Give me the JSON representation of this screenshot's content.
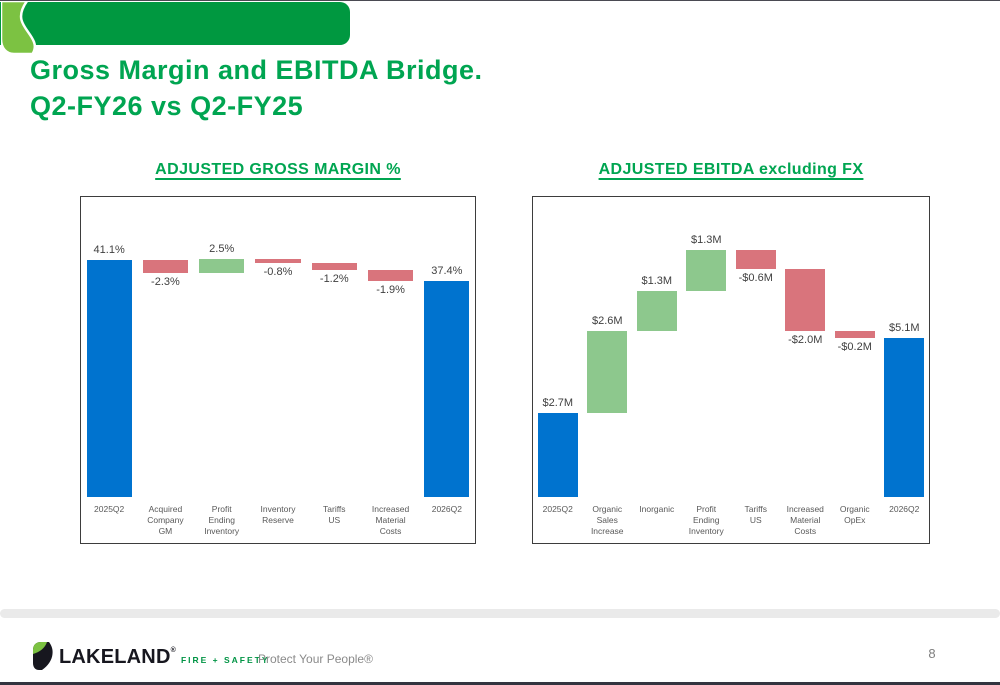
{
  "slide": {
    "title_line1": "Gross Margin and EBITDA Bridge.",
    "title_line2": "Q2-FY26 vs Q2-FY25",
    "page_number": "8"
  },
  "footer": {
    "brand_name": "LAKELAND",
    "brand_reg": "®",
    "brand_sub": "FIRE + SAFETY",
    "tagline": "Protect Your People®"
  },
  "colors": {
    "brand_green": "#00A551",
    "header_bar_green": "#009840",
    "leaf_light_green": "#7CC242",
    "logo_navy": "#17171f",
    "bar_total_blue": "#0073CF",
    "bar_increase_green": "#8DC88D",
    "bar_decrease_red": "#D9747C"
  },
  "chart_data": [
    {
      "type": "bar",
      "subtype": "waterfall",
      "title": "ADJUSTED GROSS MARGIN %",
      "unit": "%",
      "ylim": [
        0,
        52
      ],
      "grid": false,
      "legend": false,
      "steps": [
        {
          "category": "2025Q2",
          "label": "41.1%",
          "value": 41.1,
          "role": "total"
        },
        {
          "category": "Acquired\nCompany\nGM",
          "label": "-2.3%",
          "value": -2.3,
          "role": "decrease"
        },
        {
          "category": "Profit\nEnding\nInventory",
          "label": "2.5%",
          "value": 2.5,
          "role": "increase"
        },
        {
          "category": "Inventory\nReserve",
          "label": "-0.8%",
          "value": -0.8,
          "role": "decrease"
        },
        {
          "category": "Tariffs\nUS",
          "label": "-1.2%",
          "value": -1.2,
          "role": "decrease"
        },
        {
          "category": "Increased\nMaterial\nCosts",
          "label": "-1.9%",
          "value": -1.9,
          "role": "decrease"
        },
        {
          "category": "2026Q2",
          "label": "37.4%",
          "value": 37.4,
          "role": "total"
        }
      ]
    },
    {
      "type": "bar",
      "subtype": "waterfall",
      "title": "ADJUSTED EBITDA excluding FX",
      "unit": "$M",
      "ylim": [
        0,
        9.6
      ],
      "grid": false,
      "legend": false,
      "steps": [
        {
          "category": "2025Q2",
          "label": "$2.7M",
          "value": 2.7,
          "role": "total"
        },
        {
          "category": "Organic\nSales\nIncrease",
          "label": "$2.6M",
          "value": 2.6,
          "role": "increase"
        },
        {
          "category": "Inorganic",
          "label": "$1.3M",
          "value": 1.3,
          "role": "increase"
        },
        {
          "category": "Profit\nEnding\nInventory",
          "label": "$1.3M",
          "value": 1.3,
          "role": "increase"
        },
        {
          "category": "Tariffs\nUS",
          "label": "-$0.6M",
          "value": -0.6,
          "role": "decrease"
        },
        {
          "category": "Increased\nMaterial\nCosts",
          "label": "-$2.0M",
          "value": -2.0,
          "role": "decrease"
        },
        {
          "category": "Organic\nOpEx",
          "label": "-$0.2M",
          "value": -0.2,
          "role": "decrease"
        },
        {
          "category": "2026Q2",
          "label": "$5.1M",
          "value": 5.1,
          "role": "total"
        }
      ]
    }
  ]
}
